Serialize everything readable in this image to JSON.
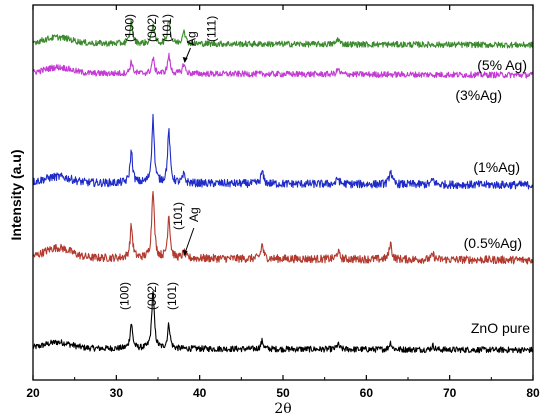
{
  "chart_data": {
    "type": "line",
    "xlabel": "2θ",
    "ylabel": "Intensity (a.u)",
    "xlim": [
      20,
      80
    ],
    "xticks": [
      20,
      30,
      40,
      50,
      60,
      70,
      80
    ],
    "yticks_shown": false,
    "grid": false,
    "series": [
      {
        "name": "ZnO pure",
        "color": "#000000",
        "baseline": 0,
        "noise": 3,
        "hump": 6,
        "peaks": [
          [
            31.8,
            25
          ],
          [
            34.4,
            58
          ],
          [
            36.3,
            24
          ],
          [
            47.5,
            8
          ],
          [
            56.6,
            5
          ],
          [
            62.9,
            7
          ],
          [
            68,
            4
          ]
        ]
      },
      {
        "name": "(0.5%Ag)",
        "color": "#b23a2e",
        "baseline": 90,
        "noise": 4,
        "hump": 10,
        "peaks": [
          [
            31.8,
            32
          ],
          [
            34.4,
            70
          ],
          [
            36.3,
            43
          ],
          [
            38.1,
            6
          ],
          [
            47.5,
            14
          ],
          [
            56.6,
            8
          ],
          [
            62.9,
            16
          ],
          [
            68,
            5
          ]
        ]
      },
      {
        "name": "(1%Ag)",
        "color": "#1f2bc8",
        "baseline": 165,
        "noise": 4,
        "hump": 6,
        "peaks": [
          [
            31.8,
            32
          ],
          [
            34.4,
            65
          ],
          [
            36.3,
            52
          ],
          [
            38.1,
            8
          ],
          [
            47.5,
            12
          ],
          [
            56.6,
            6
          ],
          [
            62.9,
            14
          ],
          [
            68,
            5
          ]
        ]
      },
      {
        "name": "(3%Ag)",
        "color": "#c33bd4",
        "baseline": 275,
        "noise": 3,
        "hump": 6,
        "peaks": [
          [
            31.8,
            12
          ],
          [
            34.4,
            15
          ],
          [
            36.3,
            18
          ],
          [
            38.1,
            10
          ],
          [
            56.6,
            5
          ]
        ]
      },
      {
        "name": "(5% Ag)",
        "color": "#3c8a2e",
        "baseline": 305,
        "noise": 3,
        "hump": 6,
        "peaks": [
          [
            31.8,
            22
          ],
          [
            34.4,
            20
          ],
          [
            36.3,
            25
          ],
          [
            38.1,
            15
          ],
          [
            56.6,
            6
          ]
        ]
      }
    ],
    "peak_labels": [
      {
        "text": "(100)",
        "x": 31.6,
        "series": "(5% Ag)"
      },
      {
        "text": "(002)",
        "x": 34.3,
        "series": "(5% Ag)"
      },
      {
        "text": "(101)",
        "x": 36.1,
        "series": "(5% Ag)"
      },
      {
        "text": "Ag",
        "x": 39.0,
        "series": "(5% Ag)"
      },
      {
        "text": "(111)",
        "x": 41.4,
        "series": "(5% Ag)"
      },
      {
        "text": "(101)",
        "x": 37.4,
        "series": "(0.5%Ag)"
      },
      {
        "text": "Ag",
        "x": 39.3,
        "series": "(0.5%Ag)"
      },
      {
        "text": "(100)",
        "x": 31.0,
        "series": "ZnO pure"
      },
      {
        "text": "(002)",
        "x": 34.3,
        "series": "ZnO pure"
      },
      {
        "text": "(101)",
        "x": 36.7,
        "series": "ZnO pure"
      }
    ]
  }
}
